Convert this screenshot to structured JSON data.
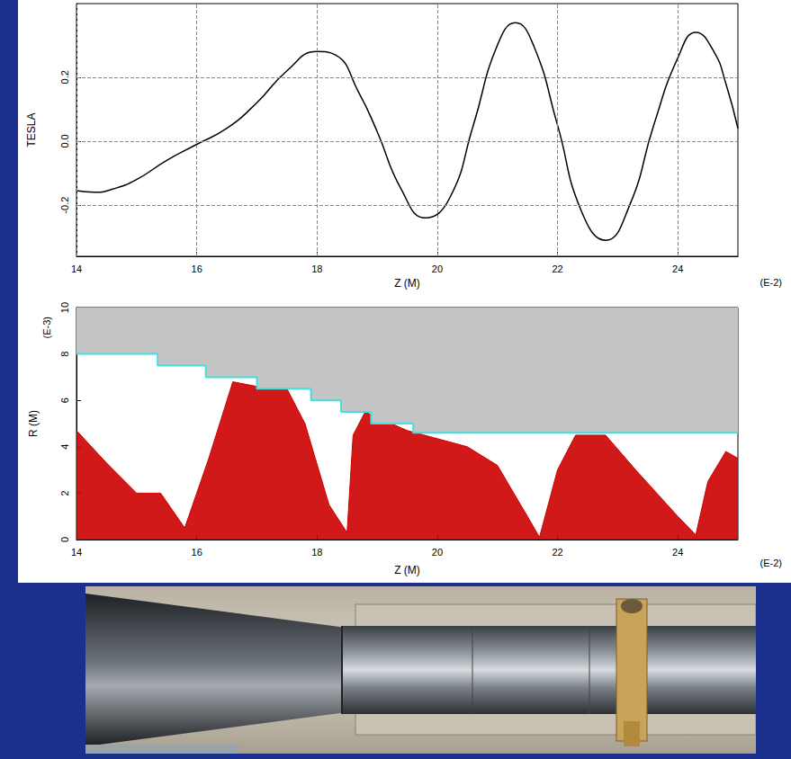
{
  "chart_data": [
    {
      "type": "line",
      "x_label": "Z (M)",
      "y_label": "TESLA",
      "annotations": [
        "(E-2)"
      ],
      "x": [
        14.0,
        14.3,
        14.6,
        15.0,
        15.5,
        16.0,
        16.5,
        17.0,
        17.5,
        18.0,
        18.3,
        18.7,
        19.0,
        19.4,
        19.8,
        20.2,
        20.6,
        21.0,
        21.3,
        21.6,
        22.0,
        22.4,
        22.8,
        23.2,
        23.6,
        24.0,
        24.3,
        24.6,
        24.8,
        25.0
      ],
      "values": [
        -0.155,
        -0.16,
        -0.15,
        -0.12,
        -0.06,
        -0.01,
        0.04,
        0.12,
        0.22,
        0.28,
        0.27,
        0.15,
        0.03,
        -0.15,
        -0.24,
        -0.18,
        0.05,
        0.3,
        0.37,
        0.3,
        0.05,
        -0.22,
        -0.31,
        -0.2,
        0.05,
        0.26,
        0.34,
        0.28,
        0.18,
        0.04
      ],
      "color": "#000000",
      "xlim": [
        14,
        25
      ],
      "xticks": [
        14,
        16,
        18,
        20,
        22,
        24
      ],
      "ylim": [
        -0.36,
        0.43
      ],
      "yticks": [
        -0.2,
        {
          "value": 0,
          "label": "0.0"
        },
        0.2
      ],
      "grid": true
    },
    {
      "type": "area",
      "x_label": "Z (M)",
      "y_label": "R (M)",
      "annotations": [
        "(E-3)",
        "(E-2)"
      ],
      "series": [
        {
          "type": "area",
          "color": "#cc0000",
          "x": [
            14.0,
            14.5,
            15.0,
            15.4,
            15.8,
            16.2,
            16.6,
            17.0,
            17.5,
            17.8,
            18.2,
            18.5,
            18.6,
            18.8,
            19.5,
            20.5,
            21.0,
            21.5,
            21.7,
            22.0,
            22.3,
            22.8,
            23.3,
            24.0,
            24.3,
            24.5,
            24.8,
            25.0
          ],
          "values": [
            4.7,
            3.3,
            2.0,
            2.0,
            0.5,
            3.5,
            6.8,
            6.6,
            6.5,
            5.0,
            1.5,
            0.3,
            4.5,
            5.5,
            4.7,
            4.0,
            3.2,
            1.0,
            0.1,
            3.0,
            4.5,
            4.5,
            3.0,
            1.0,
            0.2,
            2.5,
            3.8,
            3.5
          ]
        },
        {
          "type": "wall",
          "color": "#40e0e0",
          "x": [
            14.0,
            15.35,
            15.35,
            16.15,
            16.15,
            17.0,
            17.0,
            17.9,
            17.9,
            18.4,
            18.4,
            18.9,
            18.9,
            19.6,
            19.6,
            25.0
          ],
          "values": [
            8.0,
            8.0,
            7.5,
            7.5,
            7.0,
            7.0,
            6.5,
            6.5,
            6.0,
            6.0,
            5.5,
            5.5,
            5.0,
            5.0,
            4.6,
            4.6
          ]
        }
      ],
      "xlim": [
        14,
        25
      ],
      "xticks": [
        14,
        16,
        18,
        20,
        22,
        24
      ],
      "ylim": [
        0,
        10
      ],
      "yticks": [
        0,
        2,
        4,
        6,
        8,
        10
      ],
      "grid": false
    }
  ]
}
